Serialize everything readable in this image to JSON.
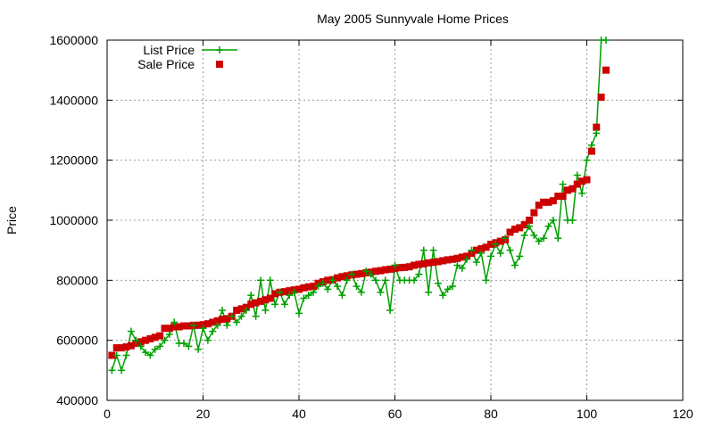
{
  "chart_data": {
    "type": "scatter",
    "title": "May 2005 Sunnyvale Home Prices",
    "xlabel": "",
    "ylabel": "Price",
    "xlim": [
      0,
      120
    ],
    "ylim": [
      400000,
      1600000
    ],
    "x_ticks": [
      0,
      20,
      40,
      60,
      80,
      100,
      120
    ],
    "y_ticks": [
      400000,
      600000,
      800000,
      1000000,
      1200000,
      1400000,
      1600000
    ],
    "x_tick_labels": [
      "0",
      "20",
      "40",
      "60",
      "80",
      "100",
      "120"
    ],
    "y_tick_labels": [
      "400000",
      "600000",
      "800000",
      "1000000",
      "1200000",
      "1400000",
      "1600000"
    ],
    "grid": true,
    "legend_position": "top-left",
    "series": [
      {
        "name": "List Price",
        "style": "line+cross",
        "color": "#00a000",
        "x": [
          1,
          2,
          3,
          4,
          5,
          6,
          7,
          8,
          9,
          10,
          11,
          12,
          13,
          14,
          15,
          16,
          17,
          18,
          19,
          20,
          21,
          22,
          23,
          24,
          25,
          26,
          27,
          28,
          29,
          30,
          31,
          32,
          33,
          34,
          35,
          36,
          37,
          38,
          39,
          40,
          41,
          42,
          43,
          44,
          45,
          46,
          47,
          48,
          49,
          50,
          51,
          52,
          53,
          54,
          55,
          56,
          57,
          58,
          59,
          60,
          61,
          62,
          63,
          64,
          65,
          66,
          67,
          68,
          69,
          70,
          71,
          72,
          73,
          74,
          75,
          76,
          77,
          78,
          79,
          80,
          81,
          82,
          83,
          84,
          85,
          86,
          87,
          88,
          89,
          90,
          91,
          92,
          93,
          94,
          95,
          96,
          97,
          98,
          99,
          100,
          101,
          102,
          103,
          104
        ],
        "y": [
          500000,
          550000,
          500000,
          550000,
          630000,
          600000,
          580000,
          560000,
          550000,
          570000,
          580000,
          600000,
          620000,
          660000,
          590000,
          590000,
          580000,
          650000,
          570000,
          640000,
          600000,
          630000,
          650000,
          700000,
          650000,
          680000,
          660000,
          680000,
          700000,
          750000,
          680000,
          800000,
          700000,
          800000,
          720000,
          760000,
          720000,
          750000,
          760000,
          690000,
          740000,
          750000,
          760000,
          780000,
          790000,
          770000,
          800000,
          780000,
          750000,
          800000,
          820000,
          780000,
          760000,
          830000,
          820000,
          800000,
          760000,
          800000,
          700000,
          850000,
          800000,
          800000,
          800000,
          800000,
          820000,
          900000,
          760000,
          900000,
          790000,
          750000,
          770000,
          780000,
          850000,
          840000,
          870000,
          900000,
          860000,
          890000,
          800000,
          880000,
          920000,
          890000,
          940000,
          900000,
          850000,
          880000,
          950000,
          980000,
          950000,
          930000,
          940000,
          980000,
          1000000,
          940000,
          1120000,
          1000000,
          1000000,
          1150000,
          1090000,
          1200000,
          1250000,
          1290000,
          1600000,
          1600000
        ]
      },
      {
        "name": "Sale Price",
        "style": "square",
        "color": "#cc0000",
        "x": [
          1,
          2,
          3,
          4,
          5,
          6,
          7,
          8,
          9,
          10,
          11,
          12,
          13,
          14,
          15,
          16,
          17,
          18,
          19,
          20,
          21,
          22,
          23,
          24,
          25,
          26,
          27,
          28,
          29,
          30,
          31,
          32,
          33,
          34,
          35,
          36,
          37,
          38,
          39,
          40,
          41,
          42,
          43,
          44,
          45,
          46,
          47,
          48,
          49,
          50,
          51,
          52,
          53,
          54,
          55,
          56,
          57,
          58,
          59,
          60,
          61,
          62,
          63,
          64,
          65,
          66,
          67,
          68,
          69,
          70,
          71,
          72,
          73,
          74,
          75,
          76,
          77,
          78,
          79,
          80,
          81,
          82,
          83,
          84,
          85,
          86,
          87,
          88,
          89,
          90,
          91,
          92,
          93,
          94,
          95,
          96,
          97,
          98,
          99,
          100,
          101,
          102,
          103,
          104
        ],
        "y": [
          550000,
          575000,
          575000,
          578000,
          582000,
          590000,
          595000,
          600000,
          605000,
          610000,
          615000,
          640000,
          640000,
          645000,
          645000,
          648000,
          648000,
          650000,
          650000,
          652000,
          655000,
          660000,
          665000,
          670000,
          672000,
          680000,
          700000,
          705000,
          710000,
          720000,
          725000,
          730000,
          735000,
          740000,
          755000,
          760000,
          762000,
          765000,
          768000,
          770000,
          775000,
          778000,
          780000,
          790000,
          795000,
          800000,
          802000,
          808000,
          812000,
          815000,
          818000,
          820000,
          822000,
          825000,
          827000,
          830000,
          832000,
          835000,
          837000,
          840000,
          842000,
          843000,
          845000,
          850000,
          853000,
          855000,
          858000,
          860000,
          862000,
          865000,
          868000,
          870000,
          873000,
          877000,
          880000,
          890000,
          900000,
          905000,
          910000,
          920000,
          925000,
          930000,
          935000,
          960000,
          970000,
          975000,
          985000,
          1000000,
          1025000,
          1050000,
          1060000,
          1060000,
          1065000,
          1080000,
          1080000,
          1100000,
          1105000,
          1120000,
          1130000,
          1135000,
          1230000,
          1310000,
          1410000,
          1500000
        ]
      }
    ]
  }
}
